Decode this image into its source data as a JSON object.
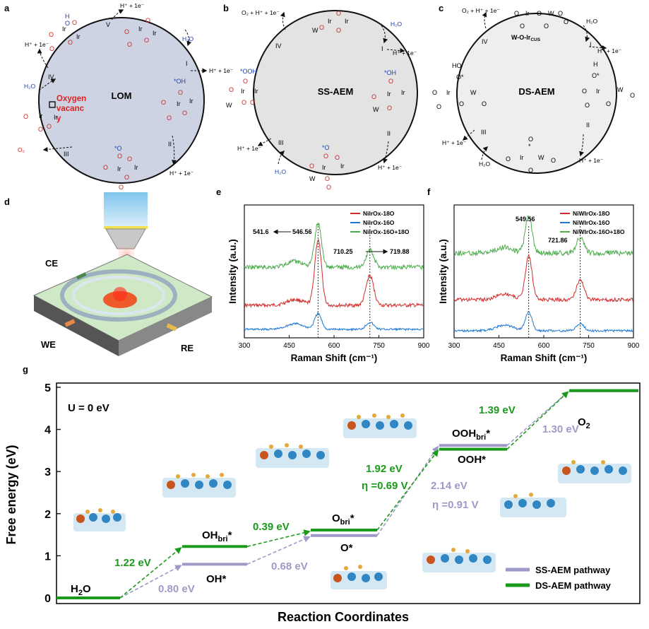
{
  "panel_labels": {
    "a": "a",
    "b": "b",
    "c": "c",
    "d": "d",
    "e": "e",
    "f": "f",
    "g": "g"
  },
  "cycles": {
    "a": {
      "center": "LOM",
      "oxygen_vacancy": [
        "Oxygen",
        "vacanc",
        "y"
      ],
      "steps": [
        "V",
        "I",
        "II",
        "III",
        "IV"
      ],
      "proton": "H⁺ + 1e⁻",
      "water": "H₂O",
      "o2": "O₂",
      "species": {
        "oh": "*OH",
        "o": "*O"
      }
    },
    "b": {
      "center": "SS-AEM",
      "top_out": "O₂ + H⁺ + 1e⁻",
      "steps": [
        "I",
        "II",
        "III",
        "IV"
      ],
      "proton": "H⁺ + 1e⁻",
      "water": "H₂O",
      "species": {
        "ooh": "*OOH",
        "oh": "*OH",
        "o": "*O"
      }
    },
    "c": {
      "center": "DS-AEM",
      "site": "W-O-Ir",
      "site_sub": "CUS",
      "top_out": "O₂ + H⁺ + 1e⁻",
      "steps": [
        "I",
        "II",
        "III",
        "IV"
      ],
      "proton": "H⁺ + 1e⁻",
      "water": "H₂O"
    }
  },
  "setup": {
    "ce": "CE",
    "we": "WE",
    "re": "RE"
  },
  "chart_data": [
    {
      "panel": "e",
      "type": "line",
      "xlabel": "Raman Shift (cm⁻¹)",
      "ylabel": "Intensity (a.u.)",
      "xlim": [
        300,
        900
      ],
      "xticks": [
        300,
        450,
        600,
        750,
        900
      ],
      "legend_position": "top-right",
      "series": [
        {
          "name": "NiIrOx-18O",
          "color": "#d42a2a"
        },
        {
          "name": "NiIrOx-16O",
          "color": "#1f78d1"
        },
        {
          "name": "NiIrOx-16O+18O",
          "color": "#4cab4c"
        }
      ],
      "annotations": [
        "541.6",
        "546.56",
        "710.25",
        "719.88"
      ],
      "peak_markers": [
        546.56,
        719.88
      ]
    },
    {
      "panel": "f",
      "type": "line",
      "xlabel": "Raman Shift (cm⁻¹)",
      "ylabel": "Intensity (a.u.)",
      "xlim": [
        300,
        900
      ],
      "xticks": [
        300,
        450,
        600,
        750,
        900
      ],
      "legend_position": "top-right",
      "series": [
        {
          "name": "NiWIrOx-18O",
          "color": "#d42a2a"
        },
        {
          "name": "NiWIrOx-16O",
          "color": "#1f78d1"
        },
        {
          "name": "NiWIrOx-16O+18O",
          "color": "#4cab4c"
        }
      ],
      "annotations": [
        "549.56",
        "721.86"
      ],
      "peak_markers": [
        549.56,
        721.86
      ]
    },
    {
      "panel": "g",
      "type": "line",
      "xlabel": "Reaction Coordinates",
      "ylabel": "Free energy (eV)",
      "ylim": [
        0,
        5
      ],
      "yticks": [
        0,
        1,
        2,
        3,
        4,
        5
      ],
      "condition": "U = 0 eV",
      "series": [
        {
          "name": "SS-AEM pathway",
          "color": "#9e9ac8",
          "levels": [
            0,
            0.8,
            1.48,
            3.62,
            4.92
          ],
          "labels": [
            "H₂O",
            "OH*",
            "O*",
            "OOH*",
            "O₂"
          ],
          "steps": [
            "0.80 eV",
            "0.68 eV",
            "2.14 eV",
            "1.30 eV"
          ],
          "overpotential": "η =0.91 V"
        },
        {
          "name": "DS-AEM pathway",
          "color": "#1a9a1a",
          "levels": [
            0,
            1.22,
            1.61,
            3.53,
            4.92
          ],
          "labels": [
            "H₂O",
            "OHbri*",
            "Obri*",
            "OOHbri*",
            "O₂"
          ],
          "steps": [
            "1.22 eV",
            "0.39 eV",
            "1.92 eV",
            "1.39 eV"
          ],
          "overpotential": "η =0.69 V"
        }
      ]
    }
  ]
}
